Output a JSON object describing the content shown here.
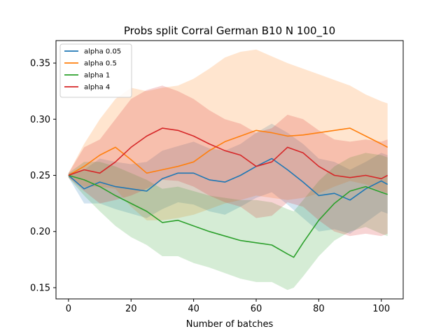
{
  "chart_data": {
    "type": "line",
    "title": "Probs split Corral German B10 N 100_10",
    "xlabel": "Number of batches",
    "ylabel": "",
    "xlim": [
      -4,
      107
    ],
    "ylim": [
      0.14,
      0.37
    ],
    "xticks": [
      0,
      20,
      40,
      60,
      80,
      100
    ],
    "yticks": [
      0.15,
      0.2,
      0.25,
      0.3,
      0.35
    ],
    "ytick_labels": [
      "0.15",
      "0.20",
      "0.25",
      "0.30",
      "0.35"
    ],
    "grid": false,
    "legend_position": "top-left",
    "series": [
      {
        "name": "alpha 0.05",
        "color": "#1f77b4",
        "x": [
          0,
          5,
          10,
          15,
          20,
          25,
          30,
          35,
          40,
          45,
          50,
          55,
          60,
          65,
          70,
          75,
          80,
          85,
          90,
          95,
          100,
          102
        ],
        "values": [
          0.25,
          0.238,
          0.244,
          0.24,
          0.238,
          0.236,
          0.247,
          0.252,
          0.252,
          0.246,
          0.244,
          0.25,
          0.258,
          0.265,
          0.255,
          0.244,
          0.232,
          0.234,
          0.228,
          0.238,
          0.245,
          0.242
        ],
        "band_upper": [
          0.252,
          0.255,
          0.265,
          0.262,
          0.26,
          0.262,
          0.272,
          0.276,
          0.28,
          0.274,
          0.272,
          0.278,
          0.288,
          0.296,
          0.288,
          0.278,
          0.265,
          0.262,
          0.255,
          0.262,
          0.27,
          0.268
        ],
        "band_lower": [
          0.248,
          0.225,
          0.225,
          0.22,
          0.216,
          0.212,
          0.22,
          0.226,
          0.224,
          0.218,
          0.215,
          0.222,
          0.23,
          0.235,
          0.224,
          0.212,
          0.2,
          0.202,
          0.198,
          0.208,
          0.218,
          0.216
        ]
      },
      {
        "name": "alpha 0.5",
        "color": "#ff7f0e",
        "x": [
          0,
          5,
          10,
          15,
          20,
          25,
          30,
          35,
          40,
          45,
          50,
          55,
          60,
          65,
          70,
          75,
          80,
          85,
          90,
          95,
          100,
          102
        ],
        "values": [
          0.25,
          0.258,
          0.268,
          0.275,
          0.264,
          0.252,
          0.255,
          0.258,
          0.262,
          0.272,
          0.28,
          0.285,
          0.29,
          0.288,
          0.285,
          0.286,
          0.288,
          0.29,
          0.292,
          0.285,
          0.278,
          0.275
        ],
        "band_upper": [
          0.252,
          0.278,
          0.3,
          0.318,
          0.328,
          0.325,
          0.328,
          0.33,
          0.336,
          0.345,
          0.355,
          0.36,
          0.362,
          0.356,
          0.35,
          0.345,
          0.34,
          0.335,
          0.33,
          0.322,
          0.316,
          0.314
        ],
        "band_lower": [
          0.248,
          0.24,
          0.24,
          0.238,
          0.222,
          0.21,
          0.21,
          0.212,
          0.215,
          0.22,
          0.225,
          0.228,
          0.232,
          0.23,
          0.228,
          0.23,
          0.234,
          0.24,
          0.245,
          0.242,
          0.236,
          0.234
        ]
      },
      {
        "name": "alpha 1",
        "color": "#2ca02c",
        "x": [
          0,
          5,
          10,
          15,
          20,
          25,
          30,
          35,
          40,
          45,
          50,
          55,
          60,
          65,
          70,
          72,
          75,
          80,
          85,
          90,
          95,
          100,
          102
        ],
        "values": [
          0.25,
          0.246,
          0.24,
          0.232,
          0.225,
          0.218,
          0.208,
          0.21,
          0.205,
          0.2,
          0.196,
          0.192,
          0.19,
          0.188,
          0.18,
          0.177,
          0.19,
          0.21,
          0.225,
          0.236,
          0.24,
          0.235,
          0.233
        ],
        "band_upper": [
          0.252,
          0.262,
          0.262,
          0.258,
          0.252,
          0.246,
          0.238,
          0.24,
          0.236,
          0.232,
          0.23,
          0.228,
          0.228,
          0.226,
          0.22,
          0.218,
          0.228,
          0.245,
          0.258,
          0.266,
          0.27,
          0.268,
          0.266
        ],
        "band_lower": [
          0.248,
          0.232,
          0.218,
          0.205,
          0.195,
          0.188,
          0.178,
          0.178,
          0.172,
          0.168,
          0.163,
          0.158,
          0.155,
          0.155,
          0.148,
          0.15,
          0.16,
          0.178,
          0.192,
          0.2,
          0.204,
          0.198,
          0.196
        ]
      },
      {
        "name": "alpha 4",
        "color": "#d62728",
        "x": [
          0,
          5,
          10,
          15,
          20,
          25,
          30,
          35,
          40,
          45,
          50,
          55,
          60,
          65,
          70,
          75,
          80,
          85,
          90,
          95,
          100,
          102
        ],
        "values": [
          0.25,
          0.255,
          0.252,
          0.262,
          0.275,
          0.285,
          0.292,
          0.29,
          0.285,
          0.278,
          0.272,
          0.268,
          0.258,
          0.262,
          0.275,
          0.27,
          0.258,
          0.25,
          0.248,
          0.25,
          0.247,
          0.25
        ],
        "band_upper": [
          0.252,
          0.275,
          0.282,
          0.3,
          0.318,
          0.326,
          0.33,
          0.325,
          0.318,
          0.308,
          0.3,
          0.296,
          0.288,
          0.292,
          0.304,
          0.3,
          0.29,
          0.282,
          0.28,
          0.282,
          0.28,
          0.282
        ],
        "band_lower": [
          0.248,
          0.236,
          0.225,
          0.228,
          0.232,
          0.238,
          0.246,
          0.245,
          0.24,
          0.232,
          0.226,
          0.222,
          0.212,
          0.214,
          0.226,
          0.222,
          0.21,
          0.2,
          0.196,
          0.198,
          0.196,
          0.198
        ]
      }
    ]
  }
}
